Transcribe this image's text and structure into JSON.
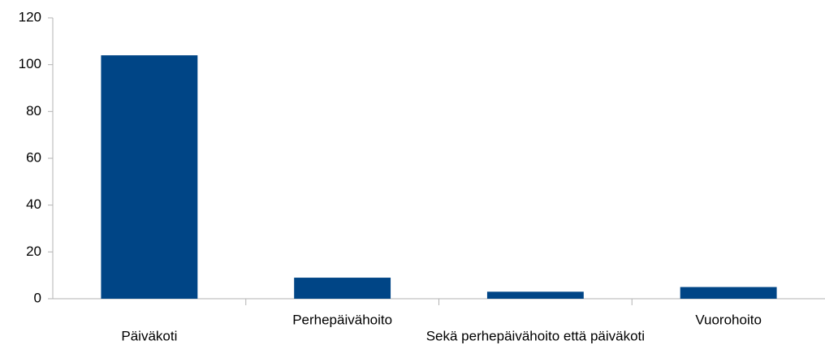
{
  "chart_data": {
    "type": "bar",
    "categories": [
      "Päiväkoti",
      "Perhepäivähoito",
      "Sekä perhepäivähoito että päiväkoti",
      "Vuorohoito"
    ],
    "values": [
      104,
      9,
      3,
      5
    ],
    "color": "#004586",
    "ylim": [
      0,
      120
    ],
    "yticks": [
      0,
      20,
      40,
      60,
      80,
      100,
      120
    ],
    "grid": false
  }
}
